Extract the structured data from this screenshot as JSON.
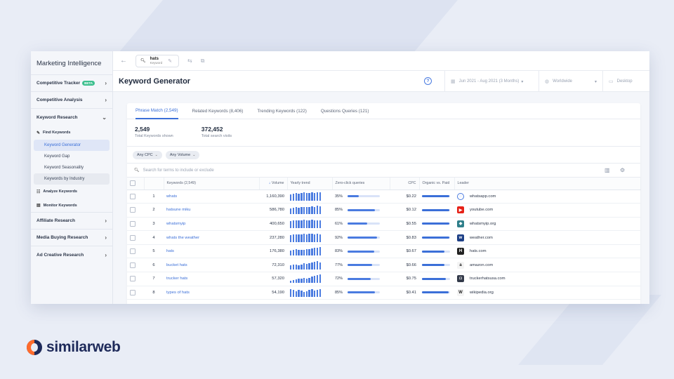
{
  "sidebar": {
    "title": "Marketing Intelligence",
    "competitive_tracker": "Competitive Tracker",
    "beta_badge": "BETA",
    "competitive_analysis": "Competitive Analysis",
    "keyword_research": "Keyword Research",
    "find_keywords": "Find Keywords",
    "items": [
      "Keyword Generator",
      "Keyword Gap",
      "Keyword Seasonality",
      "Keywords by Industry"
    ],
    "analyze_keywords": "Analyze Keywords",
    "monitor_keywords": "Monitor Keywords",
    "affiliate_research": "Affiliate Research",
    "media_buying": "Media Buying Research",
    "ad_creative": "Ad Creative Research"
  },
  "topbar": {
    "search_term": "hats",
    "search_type": "Keyword"
  },
  "header": {
    "title": "Keyword Generator",
    "date_range": "Jun 2021 - Aug 2021 (3 Months)",
    "country": "Worldwide",
    "device": "Desktop"
  },
  "tabs": [
    "Phrase Match (2,549)",
    "Related Keywords (8,406)",
    "Trending Keywords (122)",
    "Questions Queries (121)"
  ],
  "stats": [
    {
      "value": "2,549",
      "label": "Total Keywords shown"
    },
    {
      "value": "372,452",
      "label": "Total search visits"
    }
  ],
  "filters": [
    "Any CPC",
    "Any Volume"
  ],
  "search": {
    "placeholder": "Search for terms to include or exclude"
  },
  "table": {
    "columns": [
      "Keywords (2,549)",
      "Volume",
      "Yearly trend",
      "Zero-click queries",
      "CPC",
      "Organic vs. Paid",
      "Leader"
    ],
    "rows": [
      {
        "n": "1",
        "keyword": "whats",
        "volume": "1,160,390",
        "zero": "35%",
        "zero_frac": 0.35,
        "cpc": "$0.22",
        "organic_frac": 0.98,
        "leader": "whatsapp.com",
        "fav_color": "#4a7be0",
        "fav_char": "◌",
        "trend": [
          0.75,
          0.85,
          0.9,
          0.85,
          0.9,
          0.95,
          0.9,
          0.9,
          0.95,
          0.9,
          0.95,
          1.0
        ]
      },
      {
        "n": "2",
        "keyword": "hatsune miku",
        "volume": "586,780",
        "zero": "85%",
        "zero_frac": 0.85,
        "cpc": "$0.12",
        "organic_frac": 0.98,
        "leader": "youtube.com",
        "fav_color": "#e62117",
        "fav_char": "▶",
        "trend": [
          0.7,
          0.8,
          0.85,
          0.8,
          0.85,
          0.9,
          0.85,
          0.9,
          0.95,
          0.9,
          1.0,
          0.95
        ]
      },
      {
        "n": "3",
        "keyword": "whatsmyip",
        "volume": "400,650",
        "zero": "61%",
        "zero_frac": 0.61,
        "cpc": "$0.55",
        "organic_frac": 0.98,
        "leader": "whatsmyip.org",
        "fav_color": "#2f7f8a",
        "fav_char": "◆",
        "trend": [
          0.85,
          0.9,
          0.95,
          0.9,
          0.95,
          1.0,
          0.95,
          0.95,
          1.0,
          0.95,
          0.95,
          0.9
        ]
      },
      {
        "n": "4",
        "keyword": "whats the weather",
        "volume": "237,280",
        "zero": "92%",
        "zero_frac": 0.92,
        "cpc": "$0.83",
        "organic_frac": 0.98,
        "leader": "weather.com",
        "fav_color": "#1d3f86",
        "fav_char": "w",
        "trend": [
          0.8,
          0.85,
          0.9,
          0.85,
          0.9,
          0.95,
          0.9,
          0.95,
          1.0,
          0.9,
          0.95,
          0.9
        ]
      },
      {
        "n": "5",
        "keyword": "hats",
        "volume": "176,380",
        "zero": "83%",
        "zero_frac": 0.83,
        "cpc": "$0.67",
        "organic_frac": 0.8,
        "leader": "hats.com",
        "fav_color": "#222222",
        "fav_char": "H",
        "trend": [
          0.6,
          0.7,
          0.75,
          0.7,
          0.65,
          0.7,
          0.75,
          0.8,
          0.85,
          0.9,
          0.95,
          1.0
        ]
      },
      {
        "n": "6",
        "keyword": "bucket hats",
        "volume": "72,310",
        "zero": "77%",
        "zero_frac": 0.77,
        "cpc": "$0.66",
        "organic_frac": 0.8,
        "leader": "amazon.com",
        "fav_color": "#f4f4f4",
        "fav_char": "a",
        "trend": [
          0.5,
          0.6,
          0.55,
          0.5,
          0.6,
          0.7,
          0.65,
          0.7,
          0.8,
          0.9,
          1.0,
          0.85
        ]
      },
      {
        "n": "7",
        "keyword": "trucker hats",
        "volume": "57,320",
        "zero": "72%",
        "zero_frac": 0.72,
        "cpc": "$0.75",
        "organic_frac": 0.85,
        "leader": "truckerhatsusa.com",
        "fav_color": "#333a4a",
        "fav_char": "◘",
        "trend": [
          0.3,
          0.4,
          0.45,
          0.5,
          0.55,
          0.6,
          0.55,
          0.65,
          0.75,
          0.85,
          0.95,
          1.0
        ]
      },
      {
        "n": "8",
        "keyword": "types of hats",
        "volume": "54,190",
        "zero": "85%",
        "zero_frac": 0.85,
        "cpc": "$0.41",
        "organic_frac": 0.95,
        "leader": "wikipedia.org",
        "fav_color": "#f4f4f4",
        "fav_char": "W",
        "trend": [
          0.9,
          0.8,
          0.7,
          0.85,
          0.75,
          0.6,
          0.7,
          0.8,
          0.9,
          0.75,
          0.85,
          0.95
        ]
      }
    ]
  },
  "brand": {
    "name": "similarweb",
    "colors": {
      "navy": "#1e2a5a",
      "orange": "#ff6b2c",
      "accent": "#3b6fd8"
    }
  }
}
